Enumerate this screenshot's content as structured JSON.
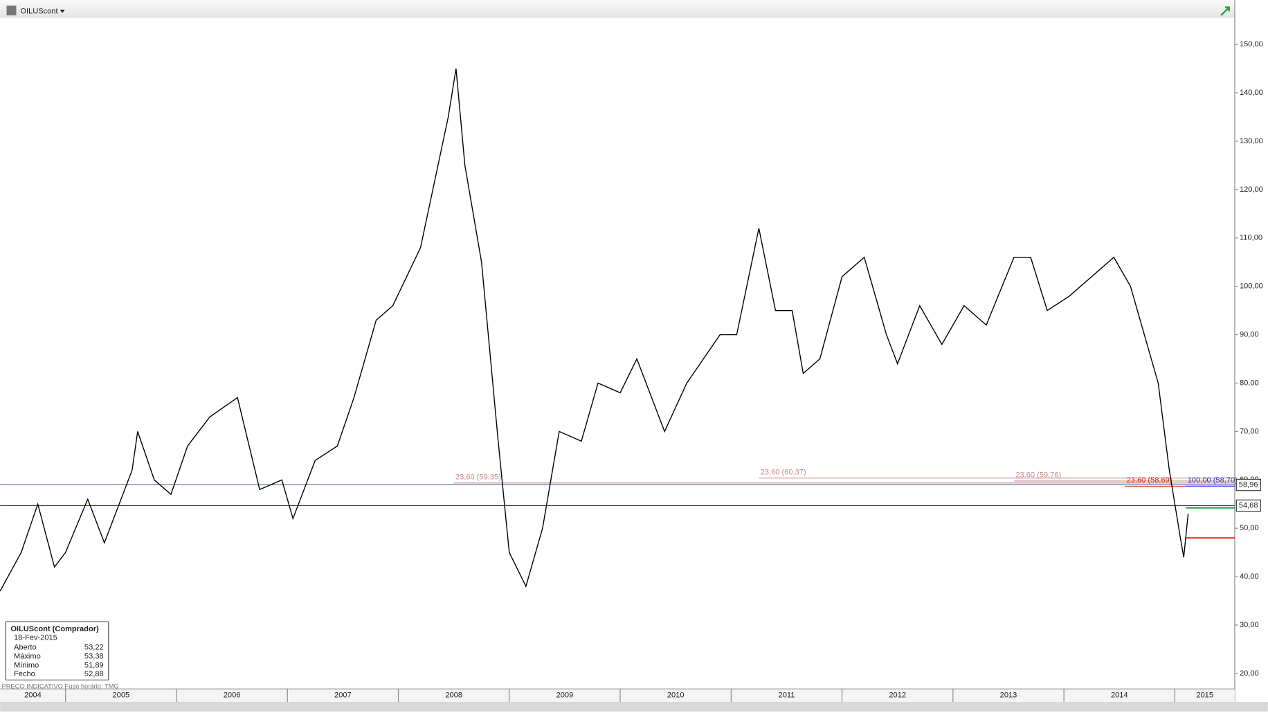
{
  "header": {
    "instrument": "OILUScont"
  },
  "chart_data": {
    "type": "line",
    "x": [
      2004.41,
      2004.6,
      2004.75,
      2004.9,
      2005.0,
      2005.2,
      2005.35,
      2005.6,
      2005.65,
      2005.8,
      2005.95,
      2006.1,
      2006.3,
      2006.55,
      2006.75,
      2006.95,
      2007.05,
      2007.25,
      2007.45,
      2007.6,
      2007.8,
      2007.95,
      2008.2,
      2008.45,
      2008.52,
      2008.6,
      2008.75,
      2008.9,
      2009.0,
      2009.15,
      2009.3,
      2009.45,
      2009.65,
      2009.8,
      2010.0,
      2010.15,
      2010.4,
      2010.6,
      2010.9,
      2011.05,
      2011.25,
      2011.4,
      2011.55,
      2011.65,
      2011.8,
      2012.0,
      2012.2,
      2012.4,
      2012.5,
      2012.7,
      2012.9,
      2013.1,
      2013.3,
      2013.55,
      2013.7,
      2013.85,
      2014.05,
      2014.2,
      2014.45,
      2014.6,
      2014.75,
      2014.85,
      2014.95,
      2015.05,
      2015.08,
      2015.12
    ],
    "series": [
      {
        "name": "OILUScont",
        "color": "#000000",
        "values": [
          37,
          45,
          55,
          42,
          45,
          56,
          47,
          62,
          70,
          60,
          57,
          67,
          73,
          77,
          58,
          60,
          52,
          64,
          67,
          77,
          93,
          96,
          108,
          135,
          145,
          125,
          105,
          68,
          45,
          38,
          50,
          70,
          68,
          80,
          78,
          85,
          70,
          80,
          90,
          90,
          112,
          95,
          95,
          82,
          85,
          102,
          106,
          90,
          84,
          96,
          88,
          96,
          92,
          106,
          106,
          95,
          98,
          101,
          106,
          100,
          88,
          80,
          62,
          48,
          44,
          53
        ]
      }
    ],
    "xlim": [
      2004.41,
      2015.54
    ],
    "xticks": [
      2004,
      2005,
      2006,
      2007,
      2008,
      2009,
      2010,
      2011,
      2012,
      2013,
      2014,
      2015
    ],
    "ylim": [
      16.8,
      155.5
    ],
    "yticks": [
      {
        "value": 20,
        "label": "20,00"
      },
      {
        "value": 30,
        "label": "30,00"
      },
      {
        "value": 40,
        "label": "40,00"
      },
      {
        "value": 50,
        "label": "50,00"
      },
      {
        "value": 60,
        "label": "60,00"
      },
      {
        "value": 70,
        "label": "70,00"
      },
      {
        "value": 80,
        "label": "80,00"
      },
      {
        "value": 90,
        "label": "90,00"
      },
      {
        "value": 100,
        "label": "100,00"
      },
      {
        "value": 110,
        "label": "110,00"
      },
      {
        "value": 120,
        "label": "120,00"
      },
      {
        "value": 130,
        "label": "130,00"
      },
      {
        "value": 140,
        "label": "140,00"
      },
      {
        "value": 150,
        "label": "150,00"
      }
    ],
    "hlines": [
      {
        "value": 58.96,
        "label": "58,96",
        "color": "#1f3a8a"
      },
      {
        "value": 54.68,
        "label": "54,68",
        "color": "#1f3a8a"
      }
    ],
    "fib_lines": [
      {
        "label": "23,60 (59,35)",
        "value": 59.35,
        "start": 2008.5,
        "color": "#c98a8a"
      },
      {
        "label": "23,60 (60,37)",
        "value": 60.37,
        "start": 2011.25,
        "color": "#c98a8a"
      },
      {
        "label": "23,60 (59,76)",
        "value": 59.76,
        "start": 2013.55,
        "color": "#c98a8a"
      },
      {
        "label": "23,60 (58,69)",
        "value": 58.69,
        "start": 2014.55,
        "color": "#e02020"
      },
      {
        "label": "100,00 (58,70)",
        "value": 58.7,
        "start": 2015.1,
        "color": "#3030e0"
      }
    ],
    "segments": [
      {
        "value": 54.2,
        "start": 2015.1,
        "color": "#2a9a2a"
      },
      {
        "value": 48,
        "start": 2015.1,
        "color": "#e01010"
      }
    ],
    "footer": "PREÇO INDICATIVO   Fuso horário: TMG",
    "info_box": {
      "title": "OILUScont (Comprador)",
      "date": "18-Fev-2015",
      "rows": [
        [
          "Aberto",
          "53,22"
        ],
        [
          "Máximo",
          "53,38"
        ],
        [
          "Mínimo",
          "51,89"
        ],
        [
          "Fecho",
          "52,88"
        ]
      ]
    }
  }
}
